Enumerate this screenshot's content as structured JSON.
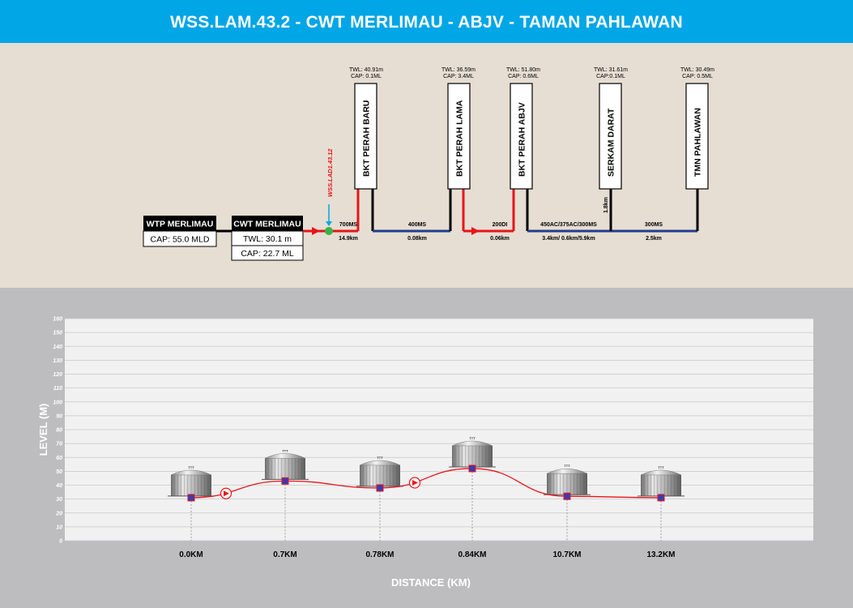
{
  "header": {
    "title": "WSS.LAM.43.2 - CWT MERLIMAU - ABJV - TAMAN PAHLAWAN"
  },
  "colors": {
    "header_bg": "#00a6e6",
    "schematic_bg": "#e6ded2",
    "chart_bg": "#bdbdbf",
    "pipe_red": "#e8141b",
    "pipe_blue": "#233d8c",
    "meter_green": "#35b44a"
  },
  "schematic": {
    "wtp": {
      "name": "WTP MERLIMAU",
      "cap": "CAP: 55.0 MLD"
    },
    "cwt": {
      "name": "CWT MERLIMAU",
      "twl": "TWL: 30.1 m",
      "cap": "CAP: 22.7 ML"
    },
    "meter_label": "WSS.LAD1.43.12",
    "tanks": [
      {
        "name": "BKT PERAH BARU",
        "twl": "TWL: 40.91m",
        "cap": "CAP: 0.1ML"
      },
      {
        "name": "BKT PERAH LAMA",
        "twl": "TWL: 36.59m",
        "cap": "CAP: 3.4ML"
      },
      {
        "name": "BKT PERAH ABJV",
        "twl": "TWL: 51.80m",
        "cap": "CAP: 0.6ML"
      },
      {
        "name": "SERKAM DARAT",
        "twl": "TWL: 31.61m",
        "cap": "CAP:0.1ML"
      },
      {
        "name": "TMN PAHLAWAN",
        "twl": "TWL: 30.49m",
        "cap": "CAP: 0.5ML"
      }
    ],
    "pipes": [
      {
        "size": "700MS",
        "length": "14.9km"
      },
      {
        "size": "400MS",
        "length": "0.08km"
      },
      {
        "size": "200DI",
        "length": "0.06km"
      },
      {
        "size": "450AC/375AC/300MS",
        "length": "3.4km/ 0.6km/5.9km"
      },
      {
        "size": "300MS",
        "length": "2.5km"
      }
    ],
    "branch_length": "1.8km"
  },
  "chart_data": {
    "type": "line",
    "xlabel": "DISTANCE (KM)",
    "ylabel": "LEVEL (M)",
    "ylim": [
      0,
      160
    ],
    "yticks": [
      0,
      10,
      20,
      30,
      40,
      50,
      60,
      70,
      80,
      90,
      100,
      110,
      120,
      130,
      140,
      150,
      160
    ],
    "categories": [
      "0.0KM",
      "0.7KM",
      "0.78KM",
      "0.84KM",
      "10.7KM",
      "13.2KM"
    ],
    "values": [
      31,
      43,
      38,
      52,
      32,
      31
    ],
    "tank_label": "TTT",
    "pumps_after_index": [
      0,
      2
    ],
    "grid": true
  }
}
